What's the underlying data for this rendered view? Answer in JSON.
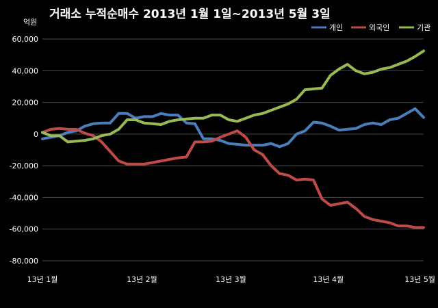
{
  "chart_data": {
    "type": "line",
    "title": "거래소 누적순매수 2013년 1월 1일~2013년 5월 3일",
    "unit_label": "억원",
    "ylim": [
      -80000,
      60000
    ],
    "yticks": [
      60000,
      40000,
      20000,
      0,
      -20000,
      -40000,
      -60000,
      -80000
    ],
    "ytick_labels": [
      "60,000",
      "40,000",
      "20,000",
      "0",
      "-20,000",
      "-40,000",
      "-60,000",
      "-80,000"
    ],
    "x_tick_labels": [
      "13년 1월",
      "13년 2월",
      "13년 3월",
      "13년 4월",
      "13년 5월"
    ],
    "x_tick_positions": [
      0,
      23.5,
      44.5,
      67.5,
      90
    ],
    "xlim": [
      0,
      90
    ],
    "grid": true,
    "legend_position": "top-right",
    "x": [
      0,
      2,
      4,
      6,
      8,
      10,
      12,
      14,
      16,
      18,
      20,
      22,
      24,
      26,
      28,
      30,
      32,
      34,
      36,
      38,
      40,
      42,
      44,
      46,
      48,
      50,
      52,
      54,
      56,
      58,
      60,
      62,
      64,
      66,
      68,
      70,
      72,
      74,
      76,
      78,
      80,
      82,
      84,
      86,
      88,
      90
    ],
    "series": [
      {
        "name": "개인",
        "color": "#4a7ebb",
        "values": [
          -3000,
          -2000,
          -1000,
          1000,
          2000,
          5000,
          6500,
          7000,
          7000,
          13000,
          13000,
          10000,
          11000,
          11000,
          13000,
          12000,
          12000,
          7000,
          6500,
          -3000,
          -3000,
          -4000,
          -6000,
          -6500,
          -7000,
          -7000,
          -7000,
          -6000,
          -8000,
          -6000,
          0,
          2000,
          7500,
          7000,
          5000,
          2500,
          3000,
          3500,
          6000,
          7000,
          6000,
          9000,
          10000,
          13000,
          16000,
          10500
        ]
      },
      {
        "name": "외국인",
        "color": "#be4b48",
        "values": [
          1000,
          3000,
          3500,
          3000,
          3000,
          500,
          -1000,
          -5000,
          -11000,
          -17000,
          -19000,
          -19000,
          -19000,
          -18000,
          -17000,
          -16000,
          -15000,
          -14500,
          -5000,
          -5000,
          -4500,
          -2000,
          0,
          2000,
          -2000,
          -10000,
          -13000,
          -20000,
          -25000,
          -26000,
          -29000,
          -28500,
          -29000,
          -41000,
          -45000,
          -44000,
          -43000,
          -47000,
          -52000,
          -54000,
          -55000,
          -56000,
          -58000,
          -58000,
          -59000,
          -59000
        ]
      },
      {
        "name": "기관",
        "color": "#98b954",
        "values": [
          1000,
          -1000,
          -1000,
          -5000,
          -4500,
          -4000,
          -3000,
          -1000,
          0,
          3000,
          9000,
          9000,
          7000,
          6500,
          6000,
          8000,
          9000,
          9500,
          10000,
          10000,
          12000,
          12000,
          9000,
          8000,
          10000,
          12000,
          13000,
          15000,
          17000,
          19000,
          22000,
          28000,
          28500,
          29000,
          37000,
          41000,
          44000,
          40000,
          38000,
          39000,
          41000,
          42000,
          44000,
          46000,
          49000,
          52500
        ]
      }
    ]
  }
}
